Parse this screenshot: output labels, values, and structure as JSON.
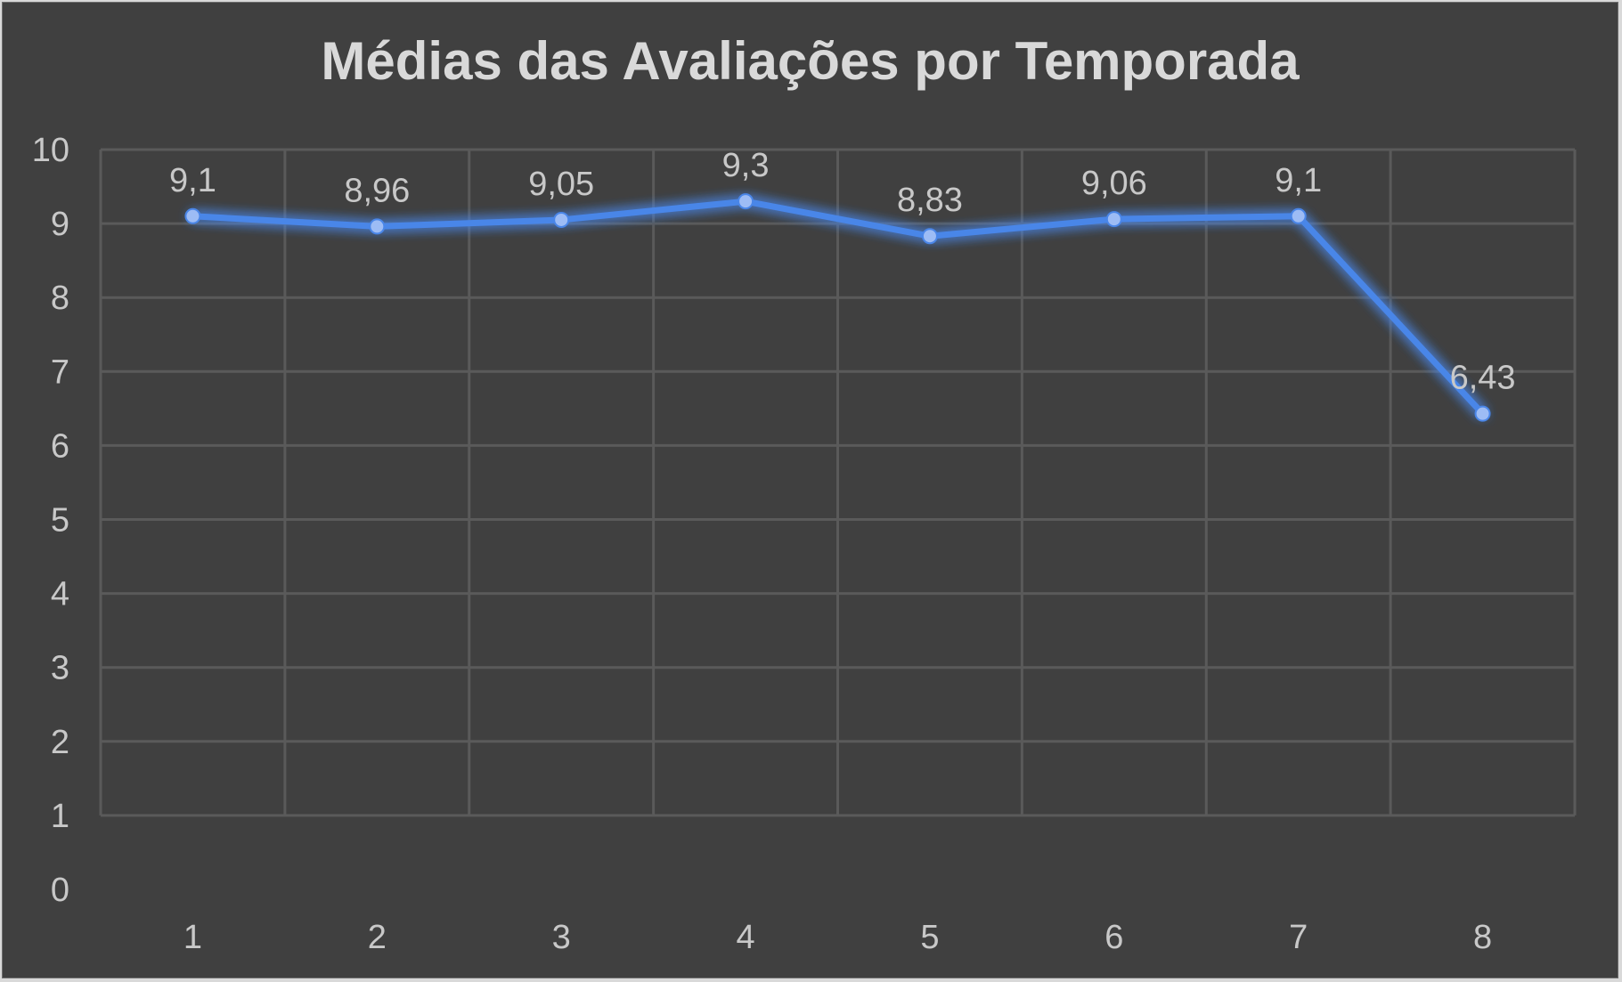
{
  "chart_data": {
    "type": "line",
    "title": "Médias das Avaliações por Temporada",
    "xlabel": "",
    "ylabel": "",
    "categories": [
      "1",
      "2",
      "3",
      "4",
      "5",
      "6",
      "7",
      "8"
    ],
    "series": [
      {
        "values": [
          9.1,
          8.96,
          9.05,
          9.3,
          8.83,
          9.06,
          9.1,
          6.43
        ],
        "data_labels": [
          "9,1",
          "8,96",
          "9,05",
          "9,3",
          "8,83",
          "9,06",
          "9,1",
          "6,43"
        ],
        "color": "#4a86e8"
      }
    ],
    "y_ticks": [
      "0",
      "1",
      "2",
      "3",
      "4",
      "5",
      "6",
      "7",
      "8",
      "9",
      "10"
    ],
    "ylim": [
      0,
      10
    ],
    "grid": true,
    "legend": false,
    "colors": {
      "background": "#404040",
      "grid": "#5a5a5a",
      "text": "#c8c8c8",
      "title": "#d9d9d9",
      "line": "#4a86e8",
      "marker": "#9dbcf5"
    }
  }
}
